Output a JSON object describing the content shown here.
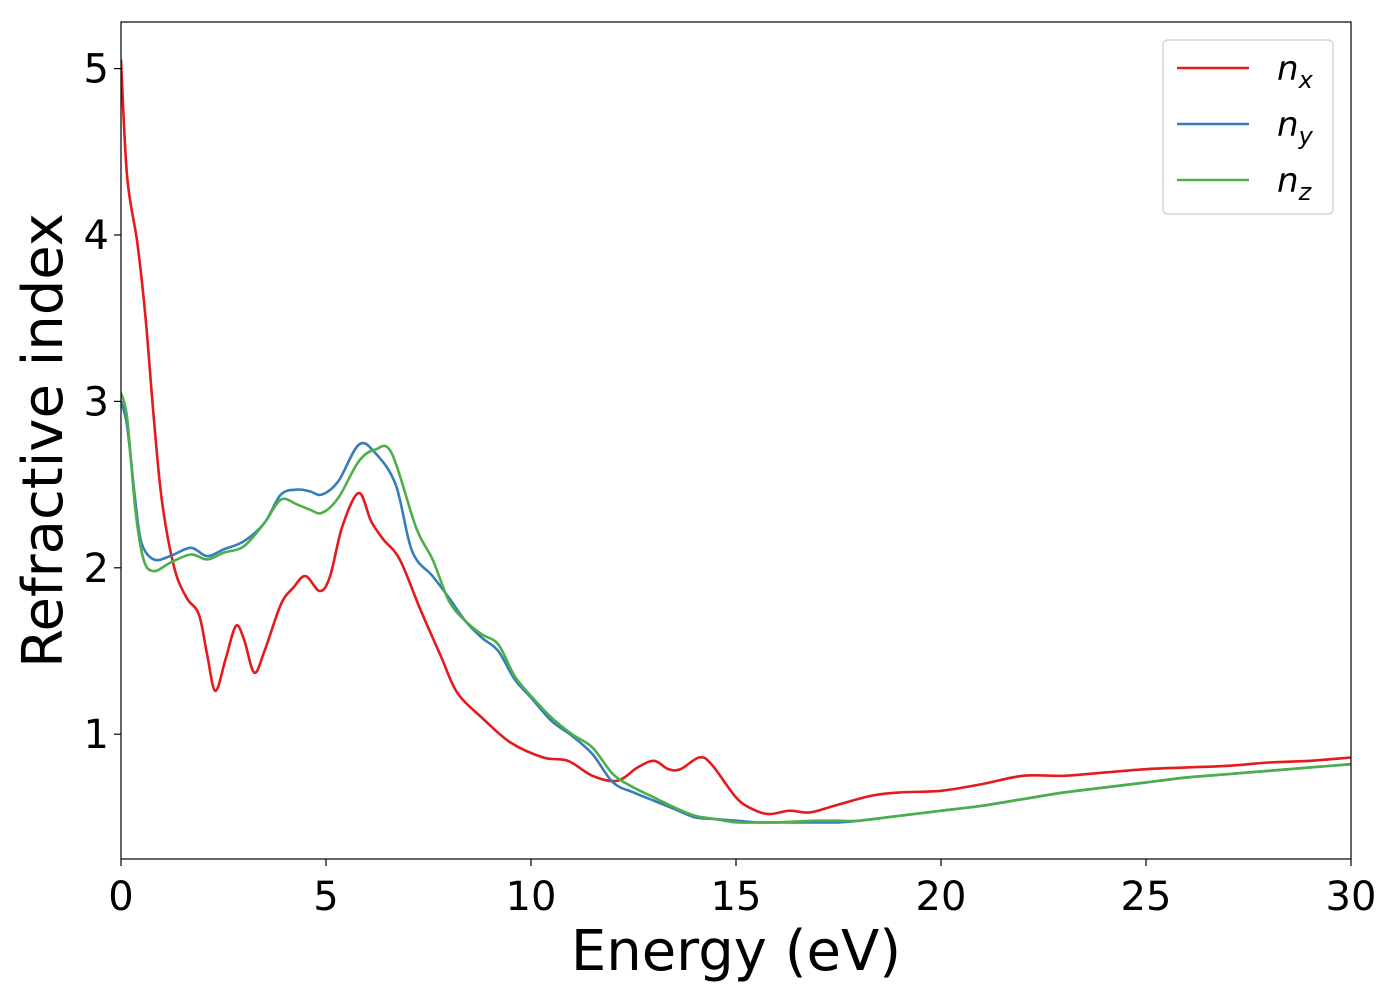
{
  "chart_data": {
    "type": "line",
    "xlabel": "Energy (eV)",
    "ylabel": "Refractive index",
    "xlim": [
      0,
      30
    ],
    "ylim": [
      0.25,
      5.28
    ],
    "xticks": [
      0,
      5,
      10,
      15,
      20,
      25,
      30
    ],
    "yticks": [
      1,
      2,
      3,
      4,
      5
    ],
    "grid": false,
    "legend_position": "top-right",
    "series": [
      {
        "name": "n_x",
        "base": "n",
        "sub": "x",
        "color": "#e41a1c",
        "points": [
          [
            0,
            5.05
          ],
          [
            0.15,
            4.35
          ],
          [
            0.4,
            3.95
          ],
          [
            0.6,
            3.5
          ],
          [
            0.8,
            2.9
          ],
          [
            1.0,
            2.4
          ],
          [
            1.3,
            2.0
          ],
          [
            1.6,
            1.82
          ],
          [
            1.9,
            1.72
          ],
          [
            2.1,
            1.48
          ],
          [
            2.3,
            1.26
          ],
          [
            2.55,
            1.45
          ],
          [
            2.8,
            1.65
          ],
          [
            3.0,
            1.57
          ],
          [
            3.25,
            1.37
          ],
          [
            3.5,
            1.5
          ],
          [
            3.9,
            1.78
          ],
          [
            4.2,
            1.88
          ],
          [
            4.5,
            1.95
          ],
          [
            4.85,
            1.86
          ],
          [
            5.1,
            1.95
          ],
          [
            5.4,
            2.25
          ],
          [
            5.8,
            2.45
          ],
          [
            6.1,
            2.28
          ],
          [
            6.4,
            2.17
          ],
          [
            6.8,
            2.05
          ],
          [
            7.3,
            1.75
          ],
          [
            7.8,
            1.47
          ],
          [
            8.2,
            1.25
          ],
          [
            8.8,
            1.1
          ],
          [
            9.5,
            0.95
          ],
          [
            10.3,
            0.86
          ],
          [
            10.9,
            0.84
          ],
          [
            11.5,
            0.75
          ],
          [
            12.1,
            0.72
          ],
          [
            12.6,
            0.8
          ],
          [
            13.0,
            0.84
          ],
          [
            13.35,
            0.79
          ],
          [
            13.65,
            0.79
          ],
          [
            14.1,
            0.86
          ],
          [
            14.4,
            0.82
          ],
          [
            15.0,
            0.62
          ],
          [
            15.4,
            0.55
          ],
          [
            15.8,
            0.52
          ],
          [
            16.3,
            0.54
          ],
          [
            16.8,
            0.53
          ],
          [
            17.4,
            0.57
          ],
          [
            18.3,
            0.63
          ],
          [
            19.0,
            0.65
          ],
          [
            20.0,
            0.66
          ],
          [
            21.0,
            0.7
          ],
          [
            22.0,
            0.75
          ],
          [
            23.0,
            0.75
          ],
          [
            24.0,
            0.77
          ],
          [
            25.0,
            0.79
          ],
          [
            26.0,
            0.8
          ],
          [
            27.0,
            0.81
          ],
          [
            28.0,
            0.83
          ],
          [
            29.0,
            0.84
          ],
          [
            30.0,
            0.86
          ]
        ]
      },
      {
        "name": "n_y",
        "base": "n",
        "sub": "y",
        "color": "#377eb8",
        "points": [
          [
            0,
            3.0
          ],
          [
            0.15,
            2.85
          ],
          [
            0.35,
            2.4
          ],
          [
            0.5,
            2.15
          ],
          [
            0.8,
            2.05
          ],
          [
            1.2,
            2.07
          ],
          [
            1.7,
            2.12
          ],
          [
            2.1,
            2.07
          ],
          [
            2.5,
            2.11
          ],
          [
            3.0,
            2.16
          ],
          [
            3.5,
            2.27
          ],
          [
            3.9,
            2.44
          ],
          [
            4.3,
            2.47
          ],
          [
            4.6,
            2.46
          ],
          [
            4.9,
            2.44
          ],
          [
            5.3,
            2.52
          ],
          [
            5.8,
            2.74
          ],
          [
            6.2,
            2.69
          ],
          [
            6.7,
            2.5
          ],
          [
            7.1,
            2.1
          ],
          [
            7.6,
            1.95
          ],
          [
            8.0,
            1.82
          ],
          [
            8.4,
            1.68
          ],
          [
            8.8,
            1.58
          ],
          [
            9.2,
            1.5
          ],
          [
            9.6,
            1.33
          ],
          [
            10.0,
            1.22
          ],
          [
            10.5,
            1.08
          ],
          [
            11.0,
            0.99
          ],
          [
            11.5,
            0.88
          ],
          [
            12.0,
            0.71
          ],
          [
            12.5,
            0.65
          ],
          [
            13.0,
            0.6
          ],
          [
            13.5,
            0.55
          ],
          [
            14.0,
            0.5
          ],
          [
            14.5,
            0.49
          ],
          [
            15.0,
            0.48
          ],
          [
            15.5,
            0.47
          ],
          [
            16.0,
            0.47
          ],
          [
            17.0,
            0.47
          ],
          [
            17.5,
            0.47
          ],
          [
            18.0,
            0.48
          ],
          [
            19.0,
            0.51
          ],
          [
            20.0,
            0.54
          ],
          [
            21.0,
            0.57
          ],
          [
            22.0,
            0.61
          ],
          [
            23.0,
            0.65
          ],
          [
            24.0,
            0.68
          ],
          [
            25.0,
            0.71
          ],
          [
            26.0,
            0.74
          ],
          [
            27.0,
            0.76
          ],
          [
            28.0,
            0.78
          ],
          [
            29.0,
            0.8
          ],
          [
            30.0,
            0.82
          ]
        ]
      },
      {
        "name": "n_z",
        "base": "n",
        "sub": "z",
        "color": "#4daf4a",
        "points": [
          [
            0,
            3.05
          ],
          [
            0.15,
            2.9
          ],
          [
            0.35,
            2.35
          ],
          [
            0.55,
            2.05
          ],
          [
            0.8,
            1.98
          ],
          [
            1.2,
            2.03
          ],
          [
            1.7,
            2.08
          ],
          [
            2.1,
            2.05
          ],
          [
            2.5,
            2.09
          ],
          [
            3.0,
            2.13
          ],
          [
            3.5,
            2.27
          ],
          [
            3.9,
            2.41
          ],
          [
            4.3,
            2.38
          ],
          [
            4.6,
            2.35
          ],
          [
            4.9,
            2.33
          ],
          [
            5.3,
            2.42
          ],
          [
            5.8,
            2.64
          ],
          [
            6.2,
            2.71
          ],
          [
            6.6,
            2.69
          ],
          [
            7.2,
            2.24
          ],
          [
            7.6,
            2.05
          ],
          [
            8.0,
            1.8
          ],
          [
            8.4,
            1.68
          ],
          [
            8.8,
            1.6
          ],
          [
            9.2,
            1.54
          ],
          [
            9.6,
            1.35
          ],
          [
            10.0,
            1.23
          ],
          [
            10.5,
            1.1
          ],
          [
            11.0,
            1.0
          ],
          [
            11.5,
            0.92
          ],
          [
            12.0,
            0.76
          ],
          [
            12.5,
            0.68
          ],
          [
            13.0,
            0.62
          ],
          [
            13.5,
            0.56
          ],
          [
            14.0,
            0.51
          ],
          [
            14.5,
            0.49
          ],
          [
            15.0,
            0.47
          ],
          [
            15.5,
            0.47
          ],
          [
            16.0,
            0.47
          ],
          [
            17.0,
            0.48
          ],
          [
            17.5,
            0.48
          ],
          [
            18.0,
            0.48
          ],
          [
            19.0,
            0.51
          ],
          [
            20.0,
            0.54
          ],
          [
            21.0,
            0.57
          ],
          [
            22.0,
            0.61
          ],
          [
            23.0,
            0.65
          ],
          [
            24.0,
            0.68
          ],
          [
            25.0,
            0.71
          ],
          [
            26.0,
            0.74
          ],
          [
            27.0,
            0.76
          ],
          [
            28.0,
            0.78
          ],
          [
            29.0,
            0.8
          ],
          [
            30.0,
            0.82
          ]
        ]
      }
    ]
  }
}
